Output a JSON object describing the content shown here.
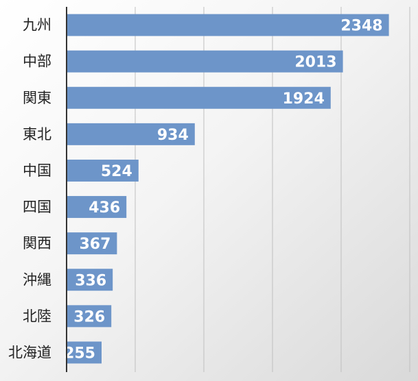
{
  "chart_data": {
    "type": "bar",
    "orientation": "horizontal",
    "categories": [
      "九州",
      "中部",
      "関東",
      "東北",
      "中国",
      "四国",
      "関西",
      "沖縄",
      "北陸",
      "北海道"
    ],
    "values": [
      2348,
      2013,
      1924,
      934,
      524,
      436,
      367,
      336,
      326,
      255
    ],
    "value_labels": [
      "2348",
      "2013",
      "1924",
      "934",
      "524",
      "436",
      "367",
      "336",
      "326",
      "255"
    ],
    "xlim": [
      0,
      2500
    ],
    "grid": true,
    "bar_color": "#6d95c9",
    "gridline_color": "#bfbfbf",
    "axis_color": "#333333"
  }
}
